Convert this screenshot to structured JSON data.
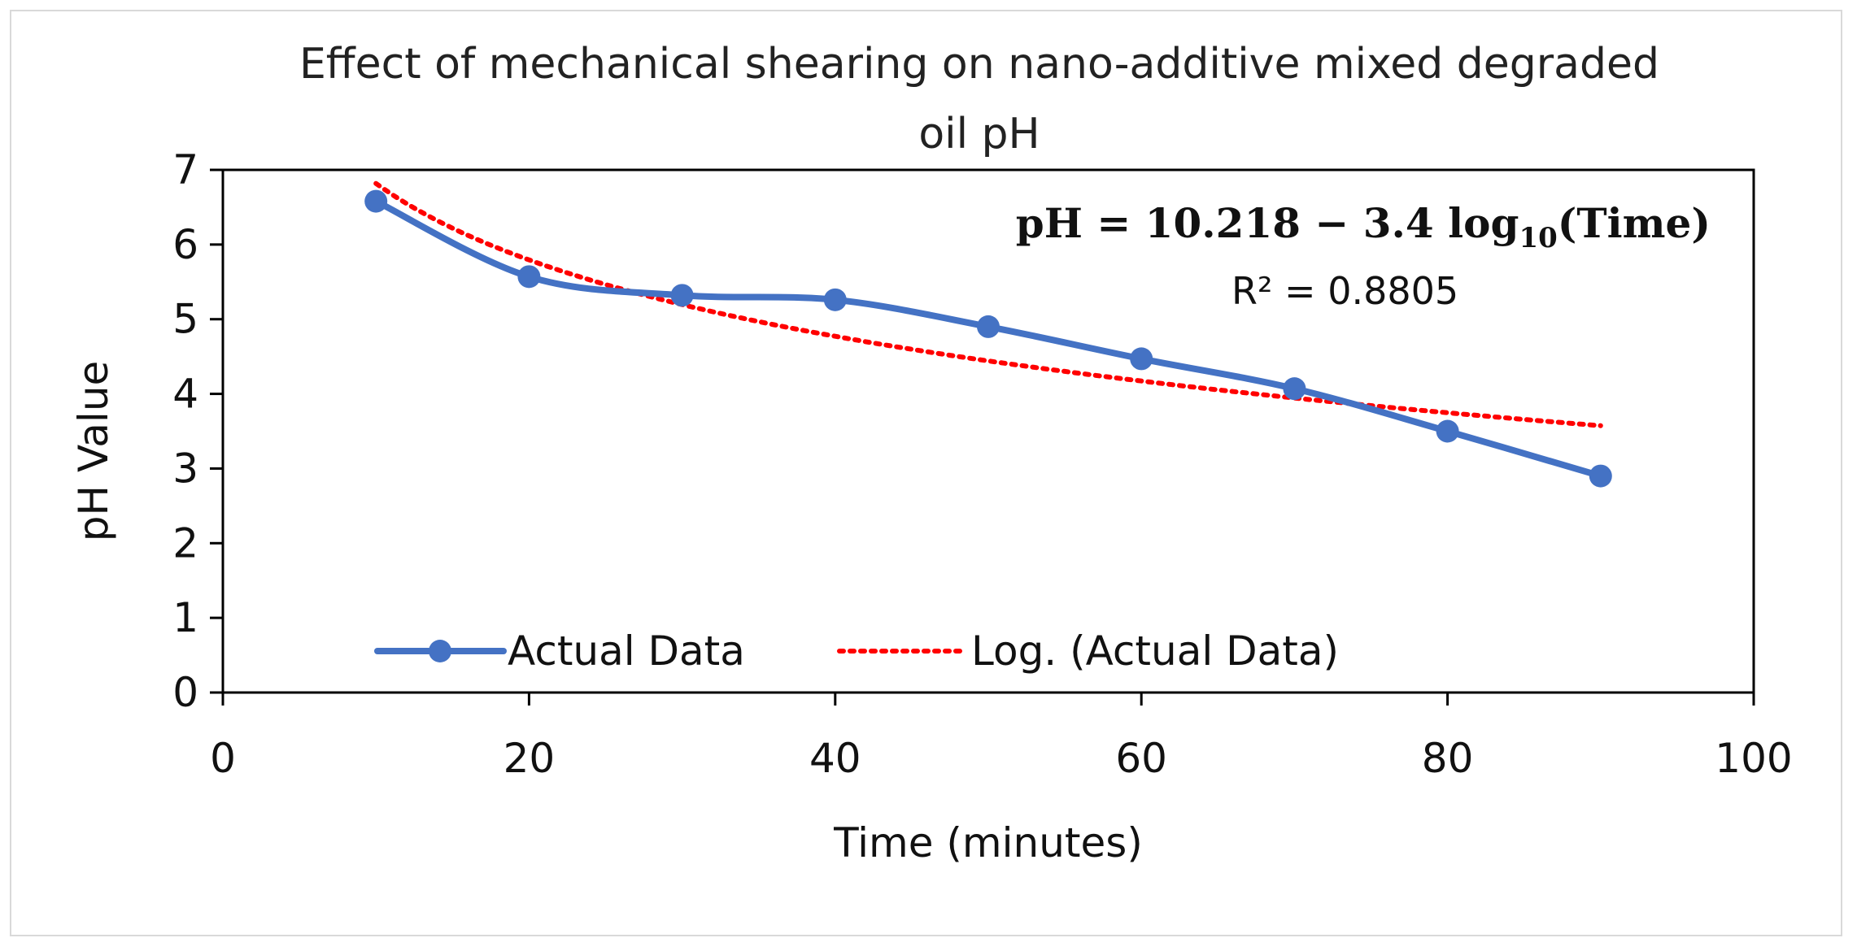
{
  "chart_data": {
    "type": "line",
    "title_lines": [
      "Effect of mechanical shearing on nano-additive mixed degraded",
      "oil pH"
    ],
    "xlabel": "Time (minutes)",
    "ylabel": "pH Value",
    "xlim": [
      0,
      100
    ],
    "ylim": [
      0,
      7
    ],
    "x_ticks": [
      0,
      20,
      40,
      60,
      80,
      100
    ],
    "y_ticks": [
      0,
      1,
      2,
      3,
      4,
      5,
      6,
      7
    ],
    "grid": false,
    "legend_position": "bottom-inside",
    "series": [
      {
        "name": "Actual Data",
        "style": "solid-line-with-markers",
        "color": "#4472C4",
        "x": [
          10,
          20,
          30,
          40,
          50,
          60,
          70,
          80,
          90
        ],
        "y": [
          6.58,
          5.57,
          5.32,
          5.26,
          4.9,
          4.47,
          4.07,
          3.5,
          2.9
        ]
      },
      {
        "name": "Log. (Actual Data)",
        "style": "dotted-trendline",
        "color": "#FF0000",
        "equation": {
          "intercept": 10.218,
          "slope_log10": -3.4,
          "x_range": [
            10,
            90
          ]
        }
      }
    ],
    "annotations": {
      "equation_parts": {
        "lhs": "pH = 10.218 − 3.4 log",
        "sub": "10",
        "rhs": "(Time)"
      },
      "r_squared": "R² = 0.8805"
    }
  }
}
